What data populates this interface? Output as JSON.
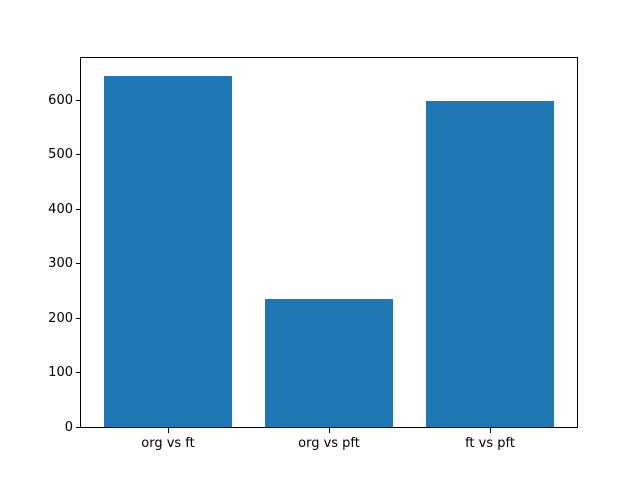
{
  "figure": {
    "background": "#ffffff",
    "bar_color": "#1f77b4",
    "spine_color": "#000000",
    "tick_label_color": "#000000"
  },
  "chart_data": {
    "type": "bar",
    "title": "",
    "xlabel": "",
    "ylabel": "",
    "categories": [
      "org vs ft",
      "org vs pft",
      "ft vs pft"
    ],
    "values": [
      645,
      235,
      598
    ],
    "x_positions": [
      0,
      1,
      2
    ],
    "bar_width": 0.8,
    "xlim": [
      -0.54,
      2.54
    ],
    "ylim": [
      0,
      677.25
    ],
    "yticks": [
      0,
      100,
      200,
      300,
      400,
      500,
      600
    ],
    "grid": false,
    "legend": null
  }
}
